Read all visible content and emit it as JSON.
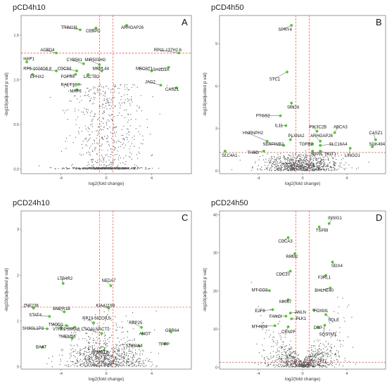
{
  "chart_data": [
    {
      "type": "scatter",
      "title": "pCD4h10",
      "letter": "A",
      "xlabel": "log2(fold change)",
      "ylabel": "-log10(adjusted p val)",
      "xlim": [
        -7.5,
        7.5
      ],
      "ylim": [
        -0.05,
        1.72
      ],
      "xticks": [
        -4,
        0,
        4
      ],
      "yticks": [
        0.0,
        0.5,
        1.0,
        1.5
      ],
      "ytick_labels": [
        "0.0",
        "0.5",
        "1.0",
        "1.5"
      ],
      "threshold_x": [
        -0.6,
        0.6
      ],
      "threshold_y": 1.3,
      "points": [
        {
          "label": "TRIM16L",
          "x": -2.3,
          "y": 1.56,
          "lx": -4.0,
          "ly": 1.57
        },
        {
          "label": "CEBPD",
          "x": -0.9,
          "y": 1.58,
          "lx": -1.8,
          "ly": 1.53
        },
        {
          "label": "ARHGAP26",
          "x": 1.8,
          "y": 1.61,
          "lx": 1.3,
          "ly": 1.57
        },
        {
          "label": "ACBD4",
          "x": -4.4,
          "y": 1.3,
          "lx": -5.8,
          "ly": 1.32
        },
        {
          "label": "RP11-137H2.6",
          "x": 6.4,
          "y": 1.3,
          "lx": 4.2,
          "ly": 1.32
        },
        {
          "label": "HAP1",
          "x": -7.0,
          "y": 1.2,
          "lx": -7.3,
          "ly": 1.22
        },
        {
          "label": "CYB561",
          "x": -2.0,
          "y": 1.18,
          "lx": -3.5,
          "ly": 1.21
        },
        {
          "label": "MIR503HG",
          "x": -0.6,
          "y": 1.17,
          "lx": -1.9,
          "ly": 1.21
        },
        {
          "label": "RP5-1024G6.8",
          "x": -4.4,
          "y": 1.1,
          "lx": -7.3,
          "ly": 1.11
        },
        {
          "label": "CDC84",
          "x": -2.6,
          "y": 1.1,
          "lx": -4.3,
          "ly": 1.11
        },
        {
          "label": "MRPL44",
          "x": -0.4,
          "y": 1.1,
          "lx": -1.2,
          "ly": 1.11
        },
        {
          "label": "MBOAT1",
          "x": 4.0,
          "y": 1.1,
          "lx": 2.6,
          "ly": 1.11
        },
        {
          "label": "SH2D3A",
          "x": 5.5,
          "y": 1.14,
          "lx": 4.1,
          "ly": 1.1
        },
        {
          "label": "EPHX2",
          "x": -6.5,
          "y": 1.06,
          "lx": -6.7,
          "ly": 1.02
        },
        {
          "label": "FGFR4",
          "x": -2.7,
          "y": 1.06,
          "lx": -4.0,
          "ly": 1.02
        },
        {
          "label": "LACTB2",
          "x": -1.6,
          "y": 1.06,
          "lx": -2.0,
          "ly": 1.02
        },
        {
          "label": "RAET1G",
          "x": -2.4,
          "y": 0.95,
          "lx": -4.0,
          "ly": 0.93
        },
        {
          "label": "JAG2",
          "x": 4.8,
          "y": 0.94,
          "lx": 3.4,
          "ly": 0.96
        },
        {
          "label": "CASZ1",
          "x": 6.2,
          "y": 0.91,
          "lx": 5.2,
          "ly": 0.88
        },
        {
          "label": "MAP6",
          "x": -2.6,
          "y": 0.89,
          "lx": -3.2,
          "ly": 0.86
        }
      ]
    },
    {
      "type": "scatter",
      "title": "pCD4h50",
      "letter": "B",
      "xlabel": "log2(fold change)",
      "ylabel": "-log10(adjusted p val)",
      "xlim": [
        -7.5,
        7.5
      ],
      "ylim": [
        -0.2,
        11.0
      ],
      "xticks": [
        -4,
        0,
        4
      ],
      "yticks": [
        0,
        3,
        6,
        9
      ],
      "ytick_labels": [
        "0",
        "3",
        "6",
        "9"
      ],
      "threshold_x": [
        -0.6,
        0.6
      ],
      "threshold_y": 1.3,
      "points": [
        {
          "label": "SPRY4",
          "x": -1.0,
          "y": 10.3,
          "lx": -2.2,
          "ly": 9.9
        },
        {
          "label": "STC1",
          "x": -1.4,
          "y": 7.0,
          "lx": -3.0,
          "ly": 6.4
        },
        {
          "label": "SMOX",
          "x": -1.0,
          "y": 4.8,
          "lx": -1.4,
          "ly": 4.4
        },
        {
          "label": "PTGS2",
          "x": -2.0,
          "y": 3.9,
          "lx": -4.2,
          "ly": 3.8
        },
        {
          "label": "IL11",
          "x": -1.5,
          "y": 3.2,
          "lx": -2.5,
          "ly": 3.1
        },
        {
          "label": "PIK3C2B",
          "x": 1.3,
          "y": 2.8,
          "lx": 0.6,
          "ly": 3.0
        },
        {
          "label": "ABCA3",
          "x": 2.9,
          "y": 2.7,
          "lx": 2.8,
          "ly": 3.0
        },
        {
          "label": "HNRNPH2",
          "x": -3.2,
          "y": 2.1,
          "lx": -5.4,
          "ly": 2.6
        },
        {
          "label": "PLXNA2",
          "x": -1.1,
          "y": 2.2,
          "lx": -1.3,
          "ly": 2.4
        },
        {
          "label": "ARHGAP26",
          "x": 1.6,
          "y": 2.1,
          "lx": 0.7,
          "ly": 2.4
        },
        {
          "label": "CASZ1",
          "x": 6.6,
          "y": 2.2,
          "lx": 6.0,
          "ly": 2.6
        },
        {
          "label": "SERPINB2",
          "x": -1.7,
          "y": 1.8,
          "lx": -3.6,
          "ly": 1.8
        },
        {
          "label": "TGFB2",
          "x": 0.9,
          "y": 1.9,
          "lx": -0.3,
          "ly": 1.8
        },
        {
          "label": "SLC16A4",
          "x": 1.6,
          "y": 1.8,
          "lx": 2.4,
          "ly": 1.8
        },
        {
          "label": "SGK494",
          "x": 6.3,
          "y": 1.7,
          "lx": 6.0,
          "ly": 1.8
        },
        {
          "label": "THBD",
          "x": -3.5,
          "y": 1.4,
          "lx": -5.0,
          "ly": 1.2
        },
        {
          "label": "SLC4A1",
          "x": -7.0,
          "y": 1.4,
          "lx": -7.3,
          "ly": 1.0
        },
        {
          "label": "SDPR",
          "x": 0.9,
          "y": 1.4,
          "lx": 0.7,
          "ly": 1.1
        },
        {
          "label": "GGT1",
          "x": 1.6,
          "y": 1.4,
          "lx": 2.0,
          "ly": 1.1
        },
        {
          "label": "LINGO1",
          "x": 4.3,
          "y": 1.6,
          "lx": 3.8,
          "ly": 1.0
        }
      ]
    },
    {
      "type": "scatter",
      "title": "pCD24h10",
      "letter": "C",
      "xlabel": "log2(fold change)",
      "ylabel": "-log10(adjusted p val)",
      "xlim": [
        -7.5,
        7.5
      ],
      "ylim": [
        -0.05,
        3.4
      ],
      "xticks": [
        -4,
        0,
        4
      ],
      "yticks": [
        0,
        1,
        2,
        3
      ],
      "ytick_labels": [
        "0",
        "1",
        "2",
        "3"
      ],
      "threshold_x": [
        -0.6,
        0.6
      ],
      "threshold_y": 1.3,
      "points": [
        {
          "label": "LTB4R2",
          "x": -3.8,
          "y": 1.82,
          "lx": -4.3,
          "ly": 1.9
        },
        {
          "label": "NEDA7",
          "x": 0.4,
          "y": 1.77,
          "lx": -0.4,
          "ly": 1.85
        },
        {
          "label": "ZNF236",
          "x": -6.4,
          "y": 1.28,
          "lx": -7.3,
          "ly": 1.31
        },
        {
          "label": "KIAA1199",
          "x": 0.2,
          "y": 1.28,
          "lx": -0.9,
          "ly": 1.31
        },
        {
          "label": "BMPR1B",
          "x": -3.7,
          "y": 1.2,
          "lx": -4.7,
          "ly": 1.24
        },
        {
          "label": "STAT4",
          "x": -5.0,
          "y": 1.1,
          "lx": -6.8,
          "ly": 1.1
        },
        {
          "label": "RP13-582O9.5",
          "x": -1.1,
          "y": 0.96,
          "lx": -2.1,
          "ly": 1.03
        },
        {
          "label": "TMOD1",
          "x": -3.5,
          "y": 0.9,
          "lx": -5.1,
          "ly": 0.89
        },
        {
          "label": "SH3GL1P3",
          "x": -5.2,
          "y": 0.83,
          "lx": -7.4,
          "ly": 0.81
        },
        {
          "label": "VTN",
          "x": -4.0,
          "y": 0.86,
          "lx": -4.7,
          "ly": 0.79
        },
        {
          "label": "RPS6KA6",
          "x": -2.8,
          "y": 0.86,
          "lx": -4.0,
          "ly": 0.79
        },
        {
          "label": "CSGALNACT1",
          "x": -0.4,
          "y": 0.73,
          "lx": -2.2,
          "ly": 0.79
        },
        {
          "label": "RPP25",
          "x": 3.1,
          "y": 0.86,
          "lx": 2.0,
          "ly": 0.93
        },
        {
          "label": "GPR64",
          "x": 5.7,
          "y": 0.76,
          "lx": 5.2,
          "ly": 0.76
        },
        {
          "label": "ANO7",
          "x": 3.2,
          "y": 0.72,
          "lx": 2.9,
          "ly": 0.69
        },
        {
          "label": "TMEM56",
          "x": -3.0,
          "y": 0.62,
          "lx": -4.2,
          "ly": 0.63
        },
        {
          "label": "BAAT",
          "x": -5.6,
          "y": 0.43,
          "lx": -6.2,
          "ly": 0.4
        },
        {
          "label": "ST8SIA4",
          "x": 2.9,
          "y": 0.45,
          "lx": 1.7,
          "ly": 0.43
        },
        {
          "label": "TPPP",
          "x": 5.2,
          "y": 0.5,
          "lx": 4.6,
          "ly": 0.46
        },
        {
          "label": "SFMBT2",
          "x": -0.2,
          "y": 0.36,
          "lx": -1.3,
          "ly": 0.29
        }
      ]
    },
    {
      "type": "scatter",
      "title": "pCD24h50",
      "letter": "D",
      "xlabel": "log2(fold change)",
      "ylabel": "-log10(adjusted p val)",
      "xlim": [
        -7.5,
        7.5
      ],
      "ylim": [
        -0.5,
        41.0
      ],
      "xticks": [
        -4,
        0,
        4
      ],
      "yticks": [
        0,
        10,
        20,
        30,
        40
      ],
      "ytick_labels": [
        "0",
        "10",
        "20",
        "30",
        "40"
      ],
      "threshold_x": [
        -0.6,
        0.6
      ],
      "threshold_y": 1.3,
      "points": [
        {
          "label": "INSIG1",
          "x": 2.4,
          "y": 37.7,
          "lx": 2.3,
          "ly": 38.8
        },
        {
          "label": "TGFBI",
          "x": 1.5,
          "y": 36.8,
          "lx": 1.2,
          "ly": 35.6
        },
        {
          "label": "CDCA3",
          "x": -1.3,
          "y": 34.0,
          "lx": -2.2,
          "ly": 32.7
        },
        {
          "label": "RRM2",
          "x": -0.7,
          "y": 29.8,
          "lx": -1.5,
          "ly": 28.6
        },
        {
          "label": "SOX4",
          "x": 2.7,
          "y": 27.6,
          "lx": 2.6,
          "ly": 26.2
        },
        {
          "label": "CDC20",
          "x": -1.1,
          "y": 25.2,
          "lx": -2.4,
          "ly": 24.0
        },
        {
          "label": "F2RL1",
          "x": 2.1,
          "y": 24.1,
          "lx": 1.4,
          "ly": 23.2
        },
        {
          "label": "BHLHE40",
          "x": 2.5,
          "y": 20.8,
          "lx": 1.1,
          "ly": 19.8
        },
        {
          "label": "MT-CO3",
          "x": -3.0,
          "y": 20.1,
          "lx": -4.6,
          "ly": 19.9
        },
        {
          "label": "MKI67",
          "x": -1.3,
          "y": 17.7,
          "lx": -2.1,
          "ly": 16.8
        },
        {
          "label": "E2F8",
          "x": -2.7,
          "y": 15.1,
          "lx": -4.3,
          "ly": 14.4
        },
        {
          "label": "ANLN",
          "x": -1.1,
          "y": 14.2,
          "lx": -0.7,
          "ly": 14.1
        },
        {
          "label": "FOXM1",
          "x": 1.0,
          "y": 15.0,
          "lx": 1.0,
          "ly": 14.4
        },
        {
          "label": "FANCI",
          "x": -1.5,
          "y": 13.4,
          "lx": -3.0,
          "ly": 13.0
        },
        {
          "label": "PLK1",
          "x": -1.0,
          "y": 12.7,
          "lx": -0.6,
          "ly": 12.4
        },
        {
          "label": "SQLE",
          "x": 2.1,
          "y": 13.8,
          "lx": 2.3,
          "ly": 12.0
        },
        {
          "label": "MT-ND4",
          "x": -2.5,
          "y": 10.9,
          "lx": -4.6,
          "ly": 10.3
        },
        {
          "label": "DSP",
          "x": 1.4,
          "y": 10.5,
          "lx": 1.0,
          "ly": 10.0
        },
        {
          "label": "CENPF",
          "x": -1.3,
          "y": 10.6,
          "lx": -1.9,
          "ly": 8.9
        },
        {
          "label": "SQSTM1",
          "x": 2.0,
          "y": 11.0,
          "lx": 1.5,
          "ly": 8.3
        }
      ]
    }
  ]
}
